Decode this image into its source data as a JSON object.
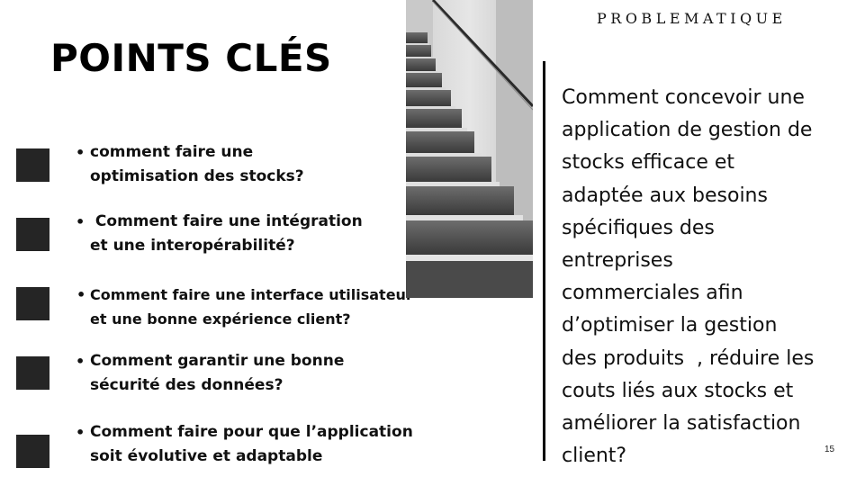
{
  "slide": {
    "title": "POINTS CLÉS",
    "section_label": "PROBLEMATIQUE",
    "page_number": "15"
  },
  "key_points": [
    {
      "lines": [
        "comment faire une",
        "optimisation des stocks?"
      ]
    },
    {
      "lines": [
        " Comment faire une intégration",
        "et une interopérabilité?"
      ]
    },
    {
      "lines": [
        "Comment faire une interface utilisateur",
        "et une bonne expérience client?"
      ]
    },
    {
      "lines": [
        "Comment garantir une bonne",
        "sécurité des données?"
      ]
    },
    {
      "lines": [
        "Comment faire pour que l’application",
        "soit évolutive et adaptable"
      ]
    }
  ],
  "problem_statement": {
    "lines": [
      "Comment concevoir une",
      "application de gestion de",
      "stocks efficace et",
      "adaptée aux besoins",
      "spécifiques des",
      "entreprises",
      "commerciales afin",
      "d’optimiser la gestion",
      "des produits  , réduire les",
      "couts liés aux stocks et",
      "améliorer la satisfaction",
      "client?"
    ]
  },
  "colors": {
    "marker": "#252525",
    "text": "#111111",
    "divider": "#000000"
  },
  "icons": {
    "bullet": "bullet-dot-icon",
    "marker": "square-marker-icon"
  }
}
